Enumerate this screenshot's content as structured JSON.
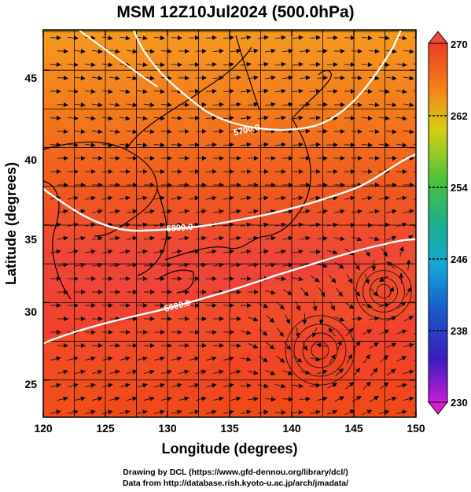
{
  "title": "MSM 12Z10Jul2024 (500.0hPa)",
  "xaxis": {
    "label": "Longitude (degrees)",
    "ticks": [
      "120",
      "125",
      "130",
      "135",
      "140",
      "145",
      "150"
    ]
  },
  "yaxis": {
    "label": "Latitude  (degrees)",
    "ticks": [
      "25",
      "30",
      "35",
      "40",
      "45"
    ]
  },
  "colorbar": {
    "ticks": [
      "270",
      "262",
      "254",
      "246",
      "238",
      "230"
    ]
  },
  "contours": [
    "5700.0",
    "5800.0",
    "5900.0"
  ],
  "footer": {
    "line1": "Drawing by DCL (https://www.gfd-dennou.org/library/dcl/)",
    "line2": "Data from http://database.rish.kyoto-u.ac.jp/arch/jmadata/"
  },
  "chart_data": {
    "type": "heatmap",
    "title": "MSM 12Z10Jul2024 (500.0hPa)",
    "xlabel": "Longitude (degrees)",
    "ylabel": "Latitude  (degrees)",
    "xlim": [
      120,
      150
    ],
    "ylim": [
      22.6,
      47.6
    ],
    "colorbar_range": [
      230,
      270
    ],
    "colorbar_ticks": [
      270,
      262,
      254,
      246,
      238,
      230
    ],
    "contour_labels": [
      "5700.0",
      "5800.0",
      "5900.0"
    ],
    "grid": true
  }
}
